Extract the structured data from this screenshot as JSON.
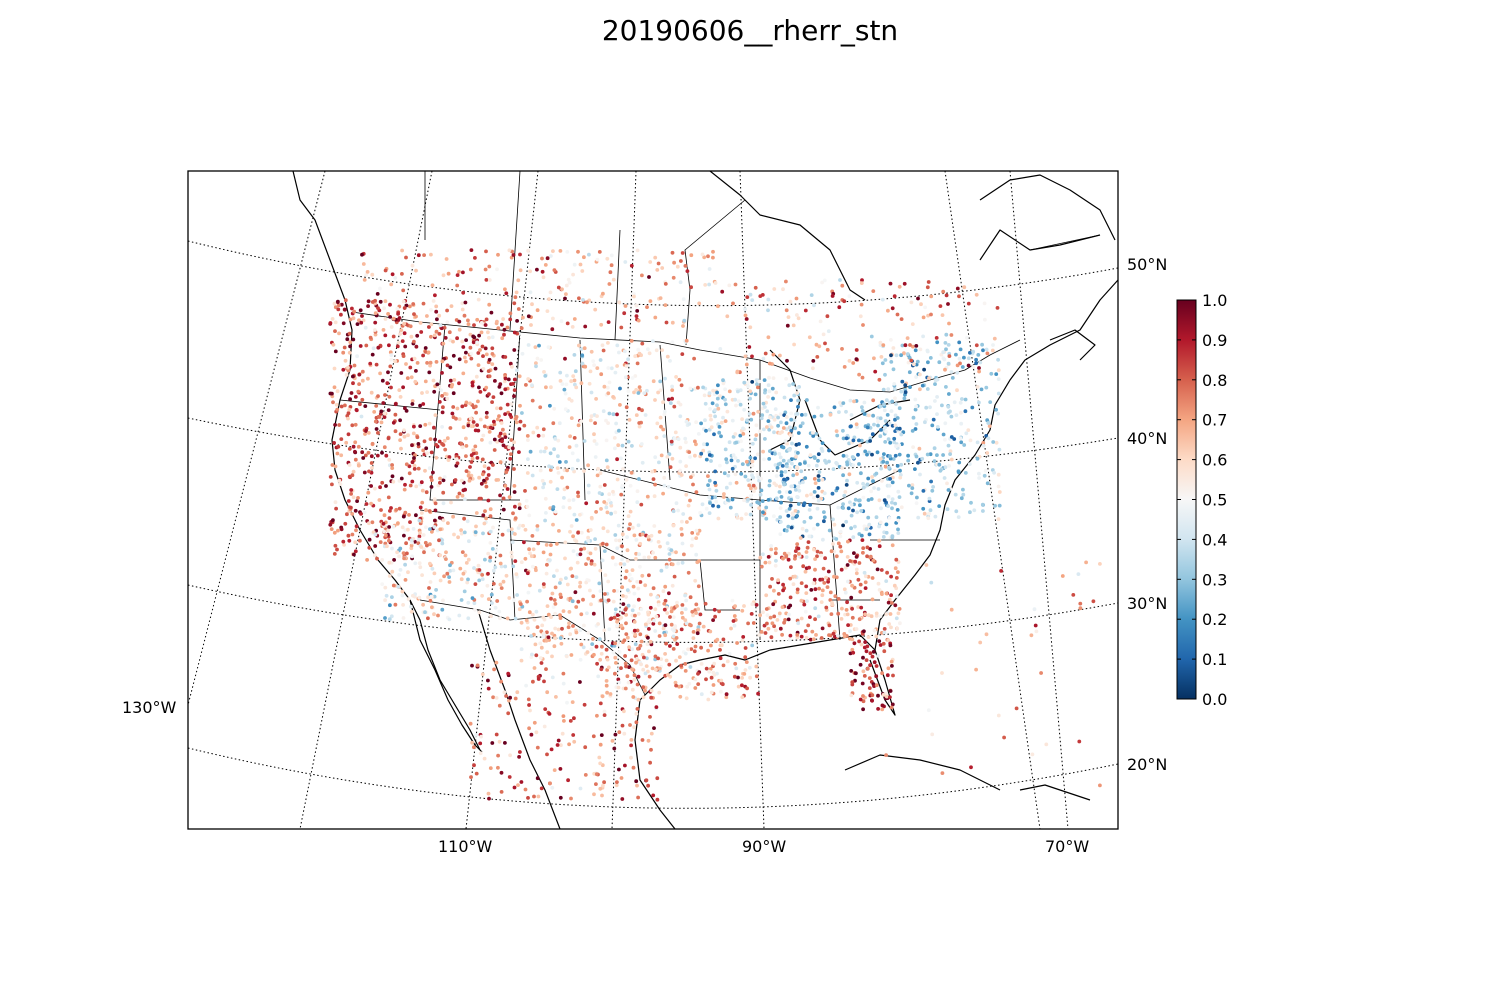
{
  "title": "20190606__rherr_stn",
  "map": {
    "projection": "lambert-conformal",
    "extent": {
      "lon_min": -130,
      "lon_max": -65,
      "lat_min": 18,
      "lat_max": 55
    },
    "meridian_labels": [
      "130°W",
      "110°W",
      "90°W",
      "70°W"
    ],
    "parallel_labels": [
      "50°N",
      "40°N",
      "30°N",
      "20°N"
    ],
    "graticule": "dotted"
  },
  "colorbar": {
    "colormap": "RdBu_r",
    "min": 0.0,
    "max": 1.0,
    "tick_labels": [
      "0.0",
      "0.1",
      "0.2",
      "0.3",
      "0.4",
      "0.5",
      "0.6",
      "0.7",
      "0.8",
      "0.9",
      "1.0"
    ],
    "colors": [
      "#053061",
      "#2166ac",
      "#4393c3",
      "#92c5de",
      "#d1e5f0",
      "#f7f7f7",
      "#fddbc7",
      "#f4a582",
      "#d6604d",
      "#b2182b",
      "#67001f"
    ]
  },
  "chart_data": {
    "type": "scatter",
    "title": "20190606__rherr_stn",
    "value_range": [
      0.0,
      1.0
    ],
    "description_regions": [
      {
        "region": "Pacific coast / California",
        "typical_value": 0.85
      },
      {
        "region": "Intermountain West",
        "typical_value": 0.8
      },
      {
        "region": "Great Plains",
        "typical_value": 0.55
      },
      {
        "region": "Upper Midwest / Great Lakes",
        "typical_value": 0.35
      },
      {
        "region": "Ohio Valley / Northeast",
        "typical_value": 0.35
      },
      {
        "region": "Southeast / Georgia",
        "typical_value": 0.8
      },
      {
        "region": "Texas",
        "typical_value": 0.7
      },
      {
        "region": "Florida",
        "typical_value": 0.85
      },
      {
        "region": "Mexico",
        "typical_value": 0.75
      },
      {
        "region": "Southern Canada",
        "typical_value": 0.7
      }
    ]
  }
}
